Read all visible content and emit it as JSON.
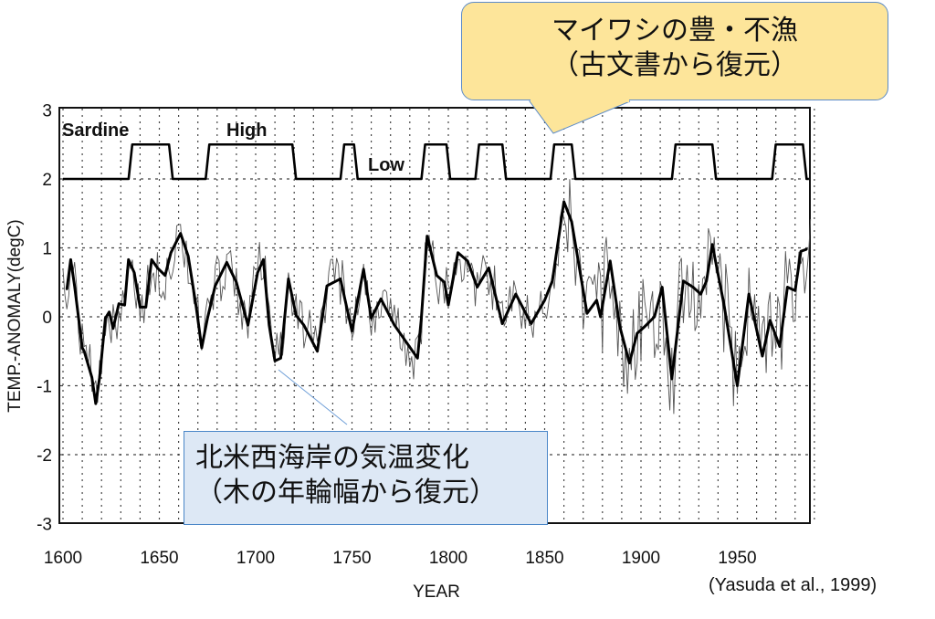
{
  "chart_data": {
    "type": "line",
    "xlabel": "YEAR",
    "ylabel": "TEMP.-ANOMALY(degC)",
    "xlim": [
      1598,
      1990
    ],
    "ylim": [
      -3,
      3
    ],
    "x_ticks": [
      "1600",
      "1650",
      "1700",
      "1750",
      "1800",
      "1850",
      "1900",
      "1950"
    ],
    "y_ticks": [
      "3",
      "2",
      "1",
      "0",
      "-1",
      "-2",
      "-3"
    ],
    "grid": true,
    "series": [
      {
        "kind": "smoothed temperature anomaly",
        "color": "#000000",
        "x": [
          1602,
          1604,
          1606,
          1610,
          1611,
          1615,
          1617,
          1619,
          1622,
          1624,
          1626,
          1629,
          1632,
          1634,
          1637,
          1640,
          1643,
          1646,
          1649,
          1653,
          1656,
          1661,
          1665,
          1669,
          1672,
          1675,
          1679,
          1685,
          1690,
          1696,
          1701,
          1704,
          1707,
          1710,
          1713,
          1717,
          1721,
          1725,
          1732,
          1737,
          1744,
          1750,
          1756,
          1760,
          1765,
          1772,
          1778,
          1784,
          1786,
          1789,
          1794,
          1798,
          1800,
          1805,
          1810,
          1815,
          1821,
          1828,
          1835,
          1843,
          1850,
          1854,
          1860,
          1864,
          1872,
          1877,
          1879,
          1884,
          1889,
          1894,
          1898,
          1902,
          1907,
          1911,
          1916,
          1922,
          1927,
          1931,
          1934,
          1937,
          1943,
          1950,
          1956,
          1963,
          1967,
          1972,
          1976,
          1980,
          1983,
          1986
        ],
        "y": [
          0.4,
          0.83,
          0.45,
          -0.45,
          -0.5,
          -0.88,
          -1.26,
          -0.88,
          -0.02,
          0.07,
          -0.17,
          0.19,
          0.17,
          0.83,
          0.64,
          0.14,
          0.14,
          0.83,
          0.71,
          0.6,
          0.93,
          1.21,
          0.88,
          0.17,
          -0.45,
          -0.02,
          0.45,
          0.79,
          0.5,
          -0.12,
          0.64,
          0.83,
          -0.12,
          -0.64,
          -0.6,
          0.55,
          0.02,
          -0.12,
          -0.5,
          0.45,
          0.55,
          -0.21,
          0.69,
          -0.02,
          0.26,
          -0.12,
          -0.36,
          -0.6,
          -0.02,
          1.17,
          0.6,
          0.5,
          0.17,
          0.93,
          0.81,
          0.43,
          0.71,
          -0.1,
          0.33,
          -0.1,
          0.24,
          0.52,
          1.67,
          1.38,
          0.05,
          0.24,
          0,
          0.81,
          -0.14,
          -0.67,
          -0.24,
          -0.14,
          0,
          0.43,
          -0.9,
          0.52,
          0.43,
          0.33,
          0.52,
          1.05,
          0.19,
          -1,
          0.33,
          -0.57,
          -0.05,
          -0.43,
          0.43,
          0.38,
          0.95,
          0.98
        ]
      },
      {
        "kind": "sardine catch index (High/Low)",
        "color": "#000000",
        "low_level": 2,
        "high_level": 2.5,
        "start": 1600,
        "end": 1990,
        "high_periods": [
          [
            1635,
            1656
          ],
          [
            1675,
            1720
          ],
          [
            1745,
            1752
          ],
          [
            1787,
            1800
          ],
          [
            1815,
            1829
          ],
          [
            1854,
            1865
          ],
          [
            1917,
            1938
          ],
          [
            1969,
            1985
          ]
        ]
      }
    ],
    "annotations": {
      "sardine": "Sardine",
      "high": "High",
      "low": "Low"
    }
  },
  "callouts": {
    "sardine_source": {
      "line1": "マイワシの豊・不漁",
      "line2": "（古文書から復元）",
      "fill": "#fde59a",
      "border": "#5b8bc9"
    },
    "temp_source": {
      "line1": "北米西海岸の気温変化",
      "line2": "（木の年輪幅から復元）",
      "fill": "#dde8f5",
      "border": "#4a86c8"
    }
  },
  "citation": "(Yasuda et al., 1999)"
}
